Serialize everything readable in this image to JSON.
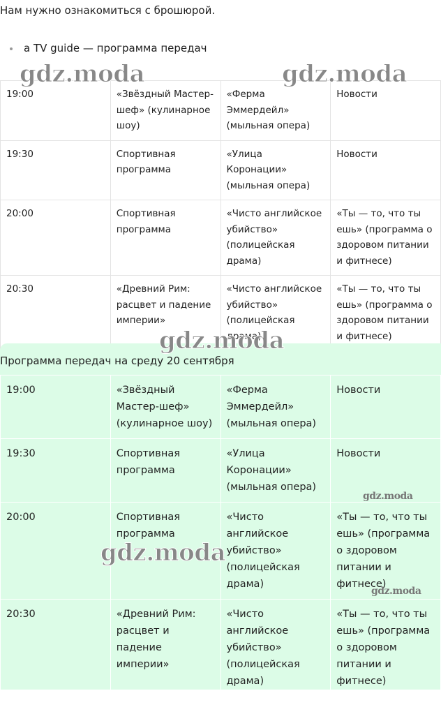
{
  "intro": "Нам нужно ознакомиться с брошюрой.",
  "bullet": "a TV guide — программа передач",
  "table1": {
    "rows": [
      [
        "19:00",
        "«Звёздный Мастер-шеф» (кулинарное шоу)",
        "«Ферма Эммердейл» (мыльная опера)",
        "Новости"
      ],
      [
        "19:30",
        "Спортивная программа",
        "«Улица Коронации» (мыльная опера)",
        "Новости"
      ],
      [
        "20:00",
        "Спортивная программа",
        "«Чисто английское убийство» (полицейская драма)",
        "«Ты — то, что ты ешь» (программа о здоровом питании и фитнесе)"
      ],
      [
        "20:30",
        "«Древний Рим: расцвет и падение империи»",
        "«Чисто английское убийство» (полицейская драма)",
        "«Ты — то, что ты ешь» (программа о здоровом питании и фитнесе)"
      ]
    ]
  },
  "heading": "Программа передач на среду 20 сентября",
  "table2": {
    "rows": [
      [
        "19:00",
        "«Звёздный Мастер-шеф» (кулинарное шоу)",
        "«Ферма Эммердейл» (мыльная опера)",
        "Новости"
      ],
      [
        "19:30",
        "Спортивная программа",
        "«Улица Коронации» (мыльная опера)",
        "Новости"
      ],
      [
        "20:00",
        "Спортивная программа",
        "«Чисто английское убийство» (полицейская драма)",
        "«Ты — то, что ты ешь» (программа о здоровом питании и фитнесе)"
      ],
      [
        "20:30",
        "«Древний Рим: расцвет и падение империи»",
        "«Чисто английское убийство» (полицейская драма)",
        "«Ты — то, что ты ешь» (программа о здоровом питании и фитнесе)"
      ]
    ]
  },
  "watermarks": [
    "gdz.moda",
    "gdz.moda",
    "gdz.moda",
    "gdz.moda",
    "gdz.moda",
    "gdz.moda"
  ]
}
